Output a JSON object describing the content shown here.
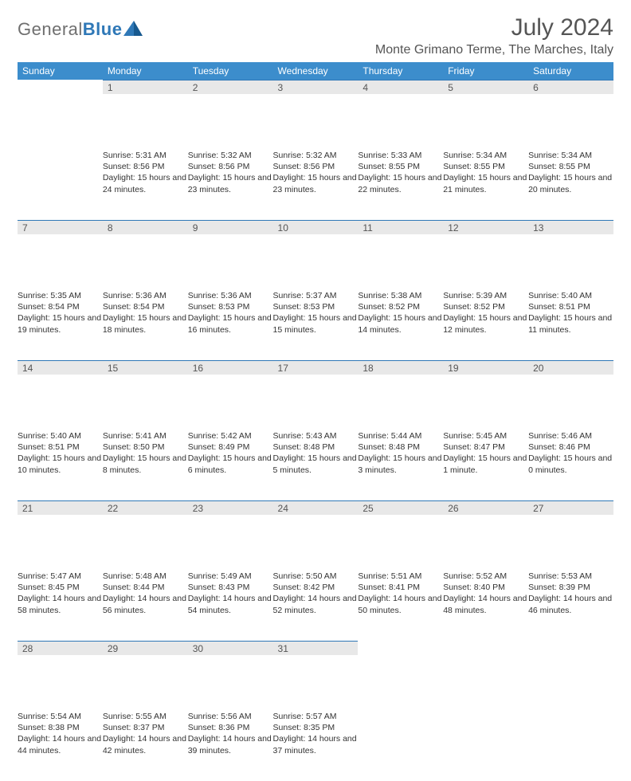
{
  "brand": {
    "part1": "General",
    "part2": "Blue"
  },
  "title": "July 2024",
  "location": "Monte Grimano Terme, The Marches, Italy",
  "colors": {
    "header_bg": "#3c8dcc",
    "band_bg": "#e8e8e8",
    "band_border": "#2f78b7",
    "logo_grey": "#6f6f6f",
    "logo_blue": "#2f78b7"
  },
  "day_headers": [
    "Sunday",
    "Monday",
    "Tuesday",
    "Wednesday",
    "Thursday",
    "Friday",
    "Saturday"
  ],
  "weeks": [
    {
      "nums": [
        "",
        "1",
        "2",
        "3",
        "4",
        "5",
        "6"
      ],
      "cells": [
        "",
        "Sunrise: 5:31 AM\nSunset: 8:56 PM\nDaylight: 15 hours and 24 minutes.",
        "Sunrise: 5:32 AM\nSunset: 8:56 PM\nDaylight: 15 hours and 23 minutes.",
        "Sunrise: 5:32 AM\nSunset: 8:56 PM\nDaylight: 15 hours and 23 minutes.",
        "Sunrise: 5:33 AM\nSunset: 8:55 PM\nDaylight: 15 hours and 22 minutes.",
        "Sunrise: 5:34 AM\nSunset: 8:55 PM\nDaylight: 15 hours and 21 minutes.",
        "Sunrise: 5:34 AM\nSunset: 8:55 PM\nDaylight: 15 hours and 20 minutes."
      ]
    },
    {
      "nums": [
        "7",
        "8",
        "9",
        "10",
        "11",
        "12",
        "13"
      ],
      "cells": [
        "Sunrise: 5:35 AM\nSunset: 8:54 PM\nDaylight: 15 hours and 19 minutes.",
        "Sunrise: 5:36 AM\nSunset: 8:54 PM\nDaylight: 15 hours and 18 minutes.",
        "Sunrise: 5:36 AM\nSunset: 8:53 PM\nDaylight: 15 hours and 16 minutes.",
        "Sunrise: 5:37 AM\nSunset: 8:53 PM\nDaylight: 15 hours and 15 minutes.",
        "Sunrise: 5:38 AM\nSunset: 8:52 PM\nDaylight: 15 hours and 14 minutes.",
        "Sunrise: 5:39 AM\nSunset: 8:52 PM\nDaylight: 15 hours and 12 minutes.",
        "Sunrise: 5:40 AM\nSunset: 8:51 PM\nDaylight: 15 hours and 11 minutes."
      ]
    },
    {
      "nums": [
        "14",
        "15",
        "16",
        "17",
        "18",
        "19",
        "20"
      ],
      "cells": [
        "Sunrise: 5:40 AM\nSunset: 8:51 PM\nDaylight: 15 hours and 10 minutes.",
        "Sunrise: 5:41 AM\nSunset: 8:50 PM\nDaylight: 15 hours and 8 minutes.",
        "Sunrise: 5:42 AM\nSunset: 8:49 PM\nDaylight: 15 hours and 6 minutes.",
        "Sunrise: 5:43 AM\nSunset: 8:48 PM\nDaylight: 15 hours and 5 minutes.",
        "Sunrise: 5:44 AM\nSunset: 8:48 PM\nDaylight: 15 hours and 3 minutes.",
        "Sunrise: 5:45 AM\nSunset: 8:47 PM\nDaylight: 15 hours and 1 minute.",
        "Sunrise: 5:46 AM\nSunset: 8:46 PM\nDaylight: 15 hours and 0 minutes."
      ]
    },
    {
      "nums": [
        "21",
        "22",
        "23",
        "24",
        "25",
        "26",
        "27"
      ],
      "cells": [
        "Sunrise: 5:47 AM\nSunset: 8:45 PM\nDaylight: 14 hours and 58 minutes.",
        "Sunrise: 5:48 AM\nSunset: 8:44 PM\nDaylight: 14 hours and 56 minutes.",
        "Sunrise: 5:49 AM\nSunset: 8:43 PM\nDaylight: 14 hours and 54 minutes.",
        "Sunrise: 5:50 AM\nSunset: 8:42 PM\nDaylight: 14 hours and 52 minutes.",
        "Sunrise: 5:51 AM\nSunset: 8:41 PM\nDaylight: 14 hours and 50 minutes.",
        "Sunrise: 5:52 AM\nSunset: 8:40 PM\nDaylight: 14 hours and 48 minutes.",
        "Sunrise: 5:53 AM\nSunset: 8:39 PM\nDaylight: 14 hours and 46 minutes."
      ]
    },
    {
      "nums": [
        "28",
        "29",
        "30",
        "31",
        "",
        "",
        ""
      ],
      "cells": [
        "Sunrise: 5:54 AM\nSunset: 8:38 PM\nDaylight: 14 hours and 44 minutes.",
        "Sunrise: 5:55 AM\nSunset: 8:37 PM\nDaylight: 14 hours and 42 minutes.",
        "Sunrise: 5:56 AM\nSunset: 8:36 PM\nDaylight: 14 hours and 39 minutes.",
        "Sunrise: 5:57 AM\nSunset: 8:35 PM\nDaylight: 14 hours and 37 minutes.",
        "",
        "",
        ""
      ]
    }
  ]
}
